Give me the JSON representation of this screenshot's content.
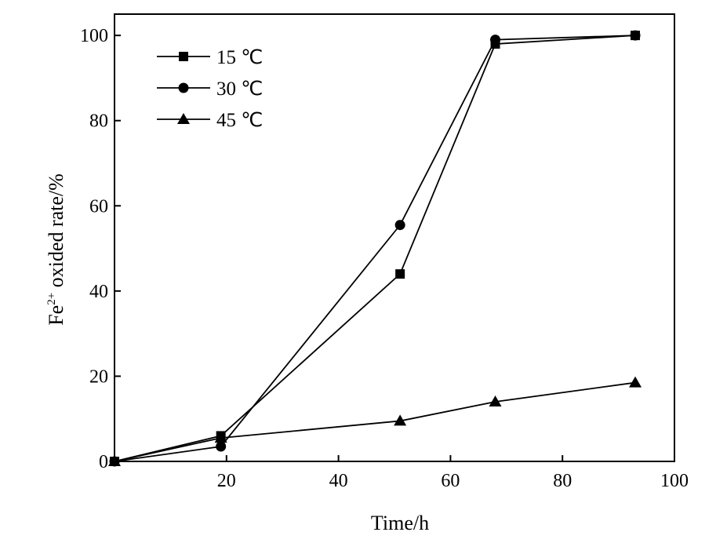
{
  "chart_data": {
    "type": "line",
    "title": "",
    "xlabel": "Time/h",
    "ylabel": {
      "prefix": "Fe",
      "superscript": "2+",
      "suffix": " oxided rate/%"
    },
    "xlim": [
      0,
      100
    ],
    "ylim": [
      0,
      105
    ],
    "xticks": [
      20,
      40,
      60,
      80,
      100
    ],
    "yticks": [
      0,
      20,
      40,
      60,
      80,
      100
    ],
    "grid": false,
    "legend_position": "top-left",
    "series": [
      {
        "name": "15 ℃",
        "marker": "square",
        "color": "#000000",
        "points": [
          [
            0,
            0
          ],
          [
            19,
            6
          ],
          [
            51,
            44
          ],
          [
            68,
            98
          ],
          [
            93,
            100
          ]
        ]
      },
      {
        "name": "30 ℃",
        "marker": "circle",
        "color": "#000000",
        "points": [
          [
            0,
            0
          ],
          [
            19,
            3.5
          ],
          [
            51,
            55.5
          ],
          [
            68,
            99
          ],
          [
            93,
            100
          ]
        ]
      },
      {
        "name": "45 ℃",
        "marker": "triangle",
        "color": "#000000",
        "points": [
          [
            0,
            0
          ],
          [
            19,
            5.5
          ],
          [
            51,
            9.5
          ],
          [
            68,
            14
          ],
          [
            93,
            18.5
          ]
        ]
      }
    ]
  }
}
